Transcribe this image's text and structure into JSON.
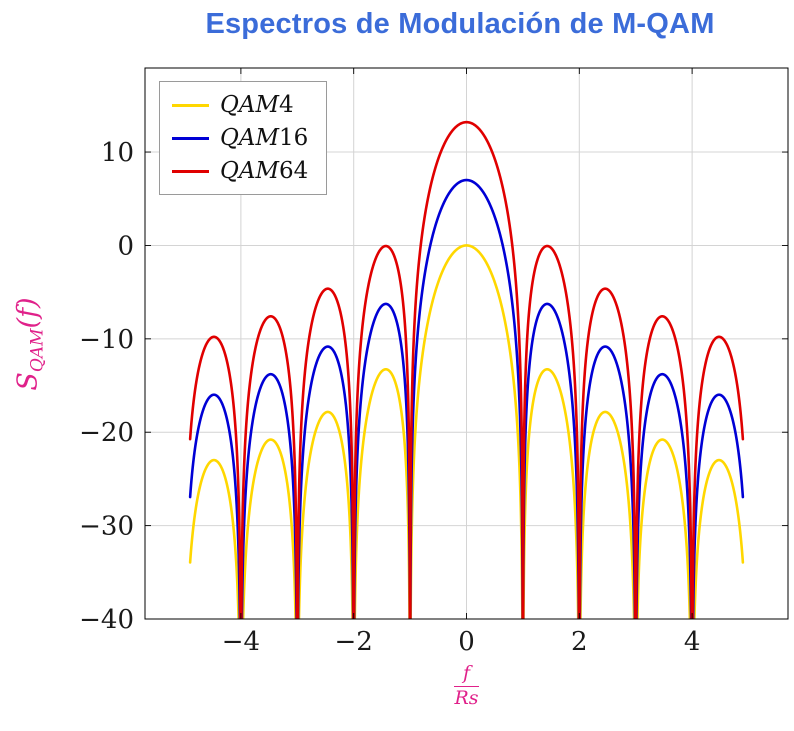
{
  "title": "Espectros de Modulación de M-QAM",
  "colors": {
    "title": "#3B6CD9",
    "axis_label_magenta": "#E0218A",
    "grid": "#D4D4D4",
    "frame": "#000000",
    "tick_text": "#1a1a1a"
  },
  "chart_data": {
    "type": "line",
    "title": "Espectros de Modulación de M-QAM",
    "xlabel": {
      "numerator": "f",
      "denominator": "Rs"
    },
    "ylabel": {
      "base": "S",
      "subscript": "QAM",
      "suffix": "(f)"
    },
    "xlim": [
      -5.7,
      5.7
    ],
    "ylim": [
      -40,
      19
    ],
    "x_ticks": {
      "values": [
        -4,
        -2,
        0,
        2,
        4
      ],
      "labels": [
        "−4",
        "−2",
        "0",
        "2",
        "4"
      ]
    },
    "y_ticks": {
      "values": [
        10,
        0,
        -10,
        -20,
        -30,
        -40
      ],
      "labels": [
        "10",
        "0",
        "−10",
        "−20",
        "−30",
        "−40"
      ]
    },
    "grid": "major",
    "legend_position": "top-left",
    "curve_formula": "y_dB = peak_db + 10*log10(sinc^2(f)) with sinc(x)=sin(pi*x)/(pi*x), plotted for f in [-4.9, 4.9]; nulls at every integer f reach below the -40 dB axis floor",
    "sidelobe_peak_positions": [
      1.43,
      2.46,
      3.47,
      4.48
    ],
    "series": [
      {
        "name": "QAM4",
        "color": "#FFD700",
        "peak_db": 0.0,
        "f_range": [
          -4.9,
          4.9
        ],
        "null_positions": [
          -4,
          -3,
          -2,
          -1,
          1,
          2,
          3,
          4
        ],
        "sidelobe_peaks_db": [
          -13.3,
          -17.8,
          -20.8,
          -23.0
        ],
        "endpoint_db_at_4p9": -33.9
      },
      {
        "name": "QAM16",
        "color": "#0000D5",
        "peak_db": 7.0,
        "f_range": [
          -4.9,
          4.9
        ],
        "null_positions": [
          -4,
          -3,
          -2,
          -1,
          1,
          2,
          3,
          4
        ],
        "sidelobe_peaks_db": [
          -6.3,
          -10.8,
          -13.8,
          -16.0
        ],
        "endpoint_db_at_4p9": -26.9
      },
      {
        "name": "QAM64",
        "color": "#E00000",
        "peak_db": 13.2,
        "f_range": [
          -4.9,
          4.9
        ],
        "null_positions": [
          -4,
          -3,
          -2,
          -1,
          1,
          2,
          3,
          4
        ],
        "sidelobe_peaks_db": [
          -0.1,
          -4.6,
          -7.6,
          -9.8
        ],
        "endpoint_db_at_4p9": -20.7
      }
    ]
  }
}
